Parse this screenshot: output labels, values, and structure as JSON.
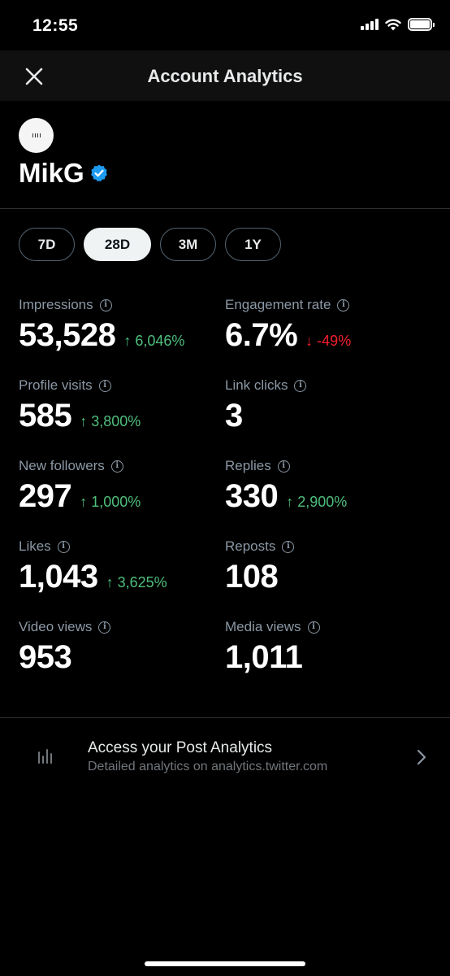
{
  "status_bar": {
    "time": "12:55"
  },
  "header": {
    "title": "Account Analytics"
  },
  "profile": {
    "name": "MikG",
    "verified": true
  },
  "ranges": [
    {
      "label": "7D",
      "selected": false
    },
    {
      "label": "28D",
      "selected": true
    },
    {
      "label": "3M",
      "selected": false
    },
    {
      "label": "1Y",
      "selected": false
    }
  ],
  "metrics": [
    {
      "label": "Impressions",
      "value": "53,528",
      "change": "↑ 6,046%",
      "trend": "up"
    },
    {
      "label": "Engagement rate",
      "value": "6.7%",
      "change": "↓ -49%",
      "trend": "down"
    },
    {
      "label": "Profile visits",
      "value": "585",
      "change": "↑ 3,800%",
      "trend": "up"
    },
    {
      "label": "Link clicks",
      "value": "3",
      "change": "",
      "trend": "none"
    },
    {
      "label": "New followers",
      "value": "297",
      "change": "↑ 1,000%",
      "trend": "up"
    },
    {
      "label": "Replies",
      "value": "330",
      "change": "↑ 2,900%",
      "trend": "up"
    },
    {
      "label": "Likes",
      "value": "1,043",
      "change": "↑ 3,625%",
      "trend": "up"
    },
    {
      "label": "Reposts",
      "value": "108",
      "change": "",
      "trend": "none"
    },
    {
      "label": "Video views",
      "value": "953",
      "change": "",
      "trend": "none"
    },
    {
      "label": "Media views",
      "value": "1,011",
      "change": "",
      "trend": "none"
    }
  ],
  "post_analytics": {
    "title": "Access your Post Analytics",
    "subtitle": "Detailed analytics on analytics.twitter.com"
  },
  "colors": {
    "background": "#000000",
    "up": "#4fbf7c",
    "down": "#f4212e",
    "verified": "#1d9bf0",
    "muted": "#8b98a5"
  },
  "icons": {
    "close": "close-icon",
    "verified": "verified-badge-icon",
    "info": "info-icon",
    "chart": "bar-chart-icon",
    "chevron": "chevron-right-icon"
  }
}
